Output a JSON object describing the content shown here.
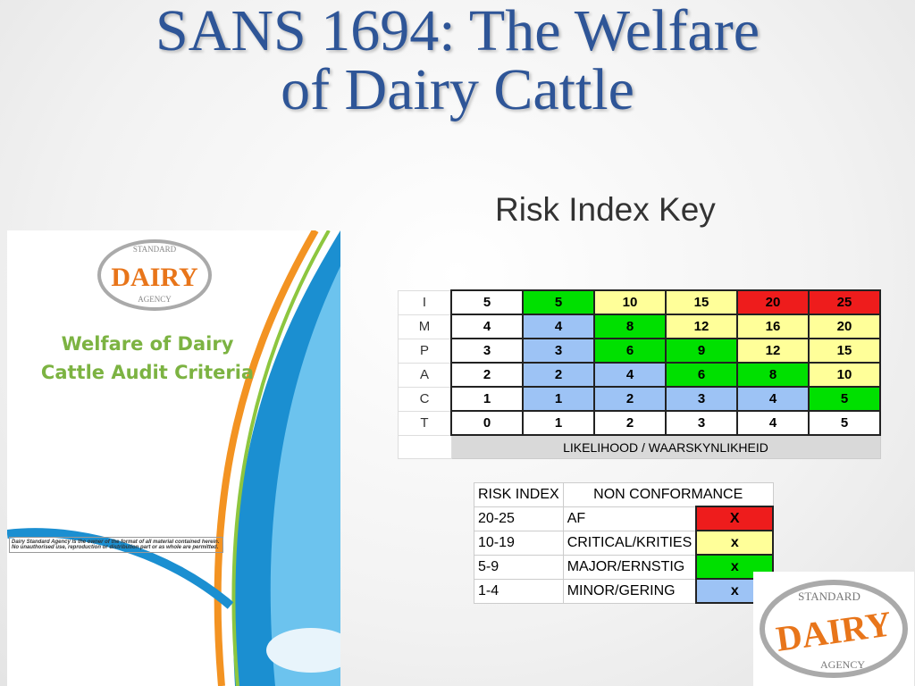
{
  "title_lines": [
    "SANS 1694: The Welfare",
    "of Dairy Cattle"
  ],
  "subtitle": "Risk Index Key",
  "cover": {
    "logo": {
      "top": "STANDARD",
      "main": "DAIRY",
      "bottom": "AGENCY"
    },
    "heading": [
      "Welfare of Dairy",
      "Cattle Audit Criteria"
    ],
    "notice": "Dairy Standard Agency is the owner of the format of all material contained herein. No unauthorised use, reproduction or distribution part or as whole are permitted."
  },
  "matrix": {
    "row_labels": [
      "I",
      "M",
      "P",
      "A",
      "C",
      "T"
    ],
    "rows": [
      [
        5,
        5,
        10,
        15,
        20,
        25
      ],
      [
        4,
        4,
        8,
        12,
        16,
        20
      ],
      [
        3,
        3,
        6,
        9,
        12,
        15
      ],
      [
        2,
        2,
        4,
        6,
        8,
        10
      ],
      [
        1,
        1,
        2,
        3,
        4,
        5
      ],
      [
        0,
        1,
        2,
        3,
        4,
        5
      ]
    ],
    "axis_label": "LIKELIHOOD / WAARSKYNLIKHEID"
  },
  "legend": {
    "headers": [
      "RISK INDEX",
      "NON CONFORMANCE"
    ],
    "rows": [
      [
        "20-25",
        "AF",
        "X"
      ],
      [
        "10-19",
        "CRITICAL/KRITIES",
        "x"
      ],
      [
        "5-9",
        "MAJOR/ERNSTIG",
        "x"
      ],
      [
        "1-4",
        "MINOR/GERING",
        "x"
      ]
    ]
  },
  "corner_logo": {
    "top": "STANDARD",
    "main": "DAIRY",
    "bottom": "AGENCY"
  }
}
